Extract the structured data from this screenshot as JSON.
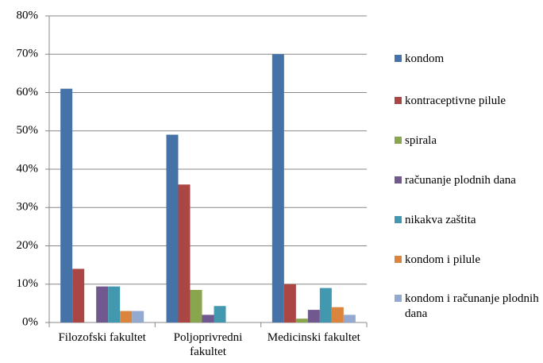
{
  "chart_data": {
    "type": "bar",
    "categories": [
      "Filozofski fakultet",
      "Poljoprivredni fakultet",
      "Medicinski fakultet"
    ],
    "series": [
      {
        "name": "kondom",
        "color": "#4572a7",
        "values": [
          61,
          49,
          70
        ]
      },
      {
        "name": "kontraceptivne pilule",
        "color": "#aa4643",
        "values": [
          14,
          36,
          10
        ]
      },
      {
        "name": "spirala",
        "color": "#89a54e",
        "values": [
          0,
          8.5,
          1
        ]
      },
      {
        "name": "računanje plodnih dana",
        "color": "#71588f",
        "values": [
          9.4,
          2,
          3.3
        ]
      },
      {
        "name": "nikakva zaštita",
        "color": "#4198af",
        "values": [
          9.4,
          4.3,
          9
        ]
      },
      {
        "name": "kondom i pilule",
        "color": "#db843d",
        "values": [
          3,
          0,
          4
        ]
      },
      {
        "name": "kondom i računanje plodnih dana",
        "color": "#93a9cf",
        "values": [
          3,
          0,
          2
        ]
      }
    ],
    "ylim": [
      0,
      80
    ],
    "yticks": [
      {
        "value": 0,
        "label": "0%"
      },
      {
        "value": 10,
        "label": "10%"
      },
      {
        "value": 20,
        "label": "20%"
      },
      {
        "value": 30,
        "label": "30%"
      },
      {
        "value": 40,
        "label": "40%"
      },
      {
        "value": 50,
        "label": "50%"
      },
      {
        "value": 60,
        "label": "60%"
      },
      {
        "value": 70,
        "label": "70%"
      },
      {
        "value": 80,
        "label": "80%"
      }
    ],
    "grid": true,
    "legend": "right"
  }
}
